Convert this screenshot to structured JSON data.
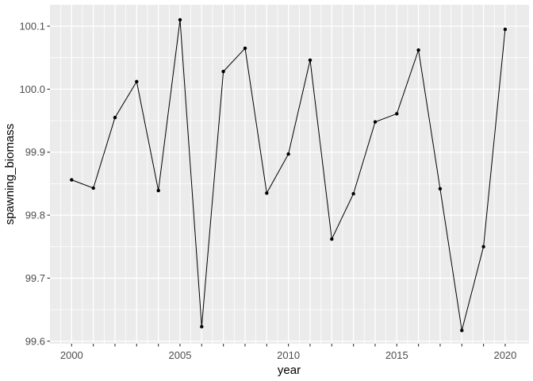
{
  "chart_data": {
    "type": "line",
    "title": "",
    "xlabel": "year",
    "ylabel": "spawning_biomass",
    "x": [
      2000,
      2001,
      2002,
      2003,
      2004,
      2005,
      2006,
      2007,
      2008,
      2009,
      2010,
      2011,
      2012,
      2013,
      2014,
      2015,
      2016,
      2017,
      2018,
      2019,
      2020
    ],
    "series": [
      {
        "name": "spawning_biomass",
        "values": [
          99.856,
          99.843,
          99.955,
          100.012,
          99.839,
          100.11,
          99.623,
          100.028,
          100.065,
          99.835,
          99.897,
          100.046,
          99.762,
          99.834,
          99.948,
          99.961,
          100.062,
          99.842,
          99.617,
          99.75,
          100.095
        ]
      }
    ],
    "xlim": [
      1999,
      2021.1
    ],
    "ylim": [
      99.596,
      100.134
    ],
    "x_labeled_ticks": [
      2000,
      2005,
      2010,
      2015,
      2020
    ],
    "x_tick_labels": [
      "2000",
      "2005",
      "2010",
      "2015",
      "2020"
    ],
    "y_ticks": [
      99.6,
      99.7,
      99.8,
      99.9,
      100.0,
      100.1
    ],
    "y_tick_labels": [
      "99.6",
      "99.7",
      "99.8",
      "99.9",
      "100.0",
      "100.1"
    ],
    "grid": {
      "on": true,
      "x_major": [
        2000,
        2001,
        2002,
        2003,
        2004,
        2005,
        2006,
        2007,
        2008,
        2009,
        2010,
        2011,
        2012,
        2013,
        2014,
        2015,
        2016,
        2017,
        2018,
        2019,
        2020
      ],
      "x_minor": [
        1999.5,
        2000.5,
        2001.5,
        2002.5,
        2003.5,
        2004.5,
        2005.5,
        2006.5,
        2007.5,
        2008.5,
        2009.5,
        2010.5,
        2011.5,
        2012.5,
        2013.5,
        2014.5,
        2015.5,
        2016.5,
        2017.5,
        2018.5,
        2019.5,
        2020.5
      ],
      "y_major": [
        99.6,
        99.7,
        99.8,
        99.9,
        100.0,
        100.1
      ],
      "y_minor": [
        99.65,
        99.75,
        99.85,
        99.95,
        100.05
      ]
    },
    "legend": "none",
    "style": {
      "panel_bg": "#ebebeb",
      "grid_color": "#ffffff",
      "line_color": "#000000",
      "point_color": "#000000",
      "axis_text_color": "#4d4d4d",
      "tick_color": "#333333"
    }
  }
}
